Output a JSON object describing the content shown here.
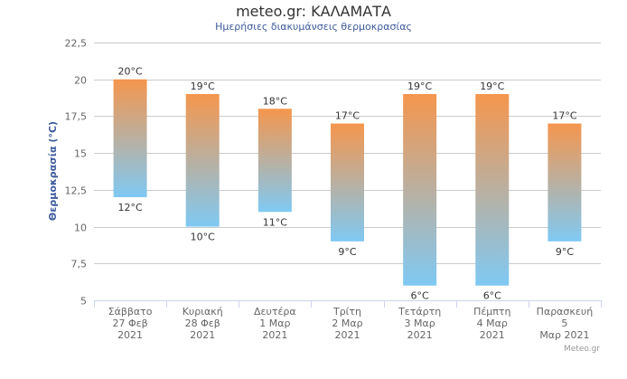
{
  "chart_data": {
    "type": "columnrange",
    "title": "meteo.gr: ΚΑΛΑΜΑΤΑ",
    "subtitle": "Ημερήσιες διακυμάνσεις θερμοκρασίας",
    "ylabel": "Θερμοκρασία (°C)",
    "ylim": [
      5,
      22.5
    ],
    "yticks": [
      "5",
      "7,5",
      "10",
      "12,5",
      "15",
      "17,5",
      "20",
      "22,5"
    ],
    "ytick_values": [
      5,
      7.5,
      10,
      12.5,
      15,
      17.5,
      20,
      22.5
    ],
    "categories": [
      [
        "Σάββατο",
        "27 Φεβ",
        "2021"
      ],
      [
        "Κυριακή",
        "28 Φεβ",
        "2021"
      ],
      [
        "Δευτέρα",
        "1 Μαρ",
        "2021"
      ],
      [
        "Τρίτη",
        "2 Μαρ",
        "2021"
      ],
      [
        "Τετάρτη",
        "3 Μαρ",
        "2021"
      ],
      [
        "Πέμπτη",
        "4 Μαρ",
        "2021"
      ],
      [
        "Παρασκευή",
        "5",
        "Μαρ 2021"
      ]
    ],
    "series": [
      {
        "low": [
          12,
          10,
          11,
          9,
          6,
          6,
          9
        ],
        "high": [
          20,
          19,
          18,
          17,
          19,
          19,
          17
        ]
      }
    ],
    "label_unit": "°C",
    "colors": {
      "top": "#f5964d",
      "bottom": "#7fc9f3",
      "grid": "#cccccc",
      "axis": "#ccd6eb"
    },
    "grid": true,
    "legend": "none"
  },
  "credit": "Meteo.gr"
}
